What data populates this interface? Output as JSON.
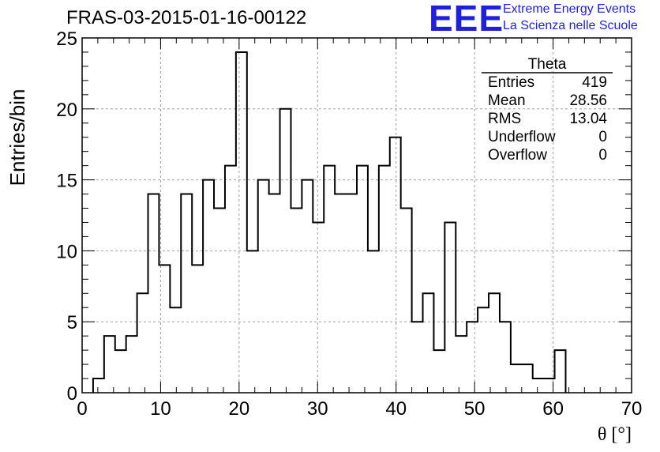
{
  "header": {
    "title": "FRAS-03-2015-01-16-00122",
    "logo_text": "EEE",
    "logo_line1": "Extreme Energy Events",
    "logo_line2": "La Scienza nelle Scuole"
  },
  "colors": {
    "logo": "#1f1fe0",
    "histogram_line": "#000000",
    "grid": "#a0a0a0"
  },
  "stats": {
    "title": "Theta",
    "rows": [
      {
        "label": "Entries",
        "value": "419"
      },
      {
        "label": "Mean",
        "value": "28.56"
      },
      {
        "label": "RMS",
        "value": "13.04"
      },
      {
        "label": "Underflow",
        "value": "0"
      },
      {
        "label": "Overflow",
        "value": "0"
      }
    ]
  },
  "chart_data": {
    "type": "histogram",
    "title": "FRAS-03-2015-01-16-00122",
    "xlabel": "θ [°]",
    "ylabel": "Entries/bin",
    "xlim": [
      0,
      70
    ],
    "ylim": [
      0,
      25
    ],
    "x_ticks": [
      0,
      10,
      20,
      30,
      40,
      50,
      60,
      70
    ],
    "y_ticks": [
      0,
      5,
      10,
      15,
      20,
      25
    ],
    "grid": true,
    "bin_width": 1.4,
    "bin_start": 1.4,
    "series": [
      {
        "values": [
          1,
          4,
          3,
          4,
          7,
          14,
          9,
          6,
          14,
          9,
          15,
          13,
          16,
          24,
          10,
          15,
          14,
          20,
          13,
          15,
          12,
          16,
          14,
          14,
          16,
          10,
          16,
          18,
          13,
          5,
          7,
          3,
          12,
          4,
          5,
          6,
          7,
          5,
          2,
          2,
          1,
          1,
          3
        ]
      }
    ]
  }
}
